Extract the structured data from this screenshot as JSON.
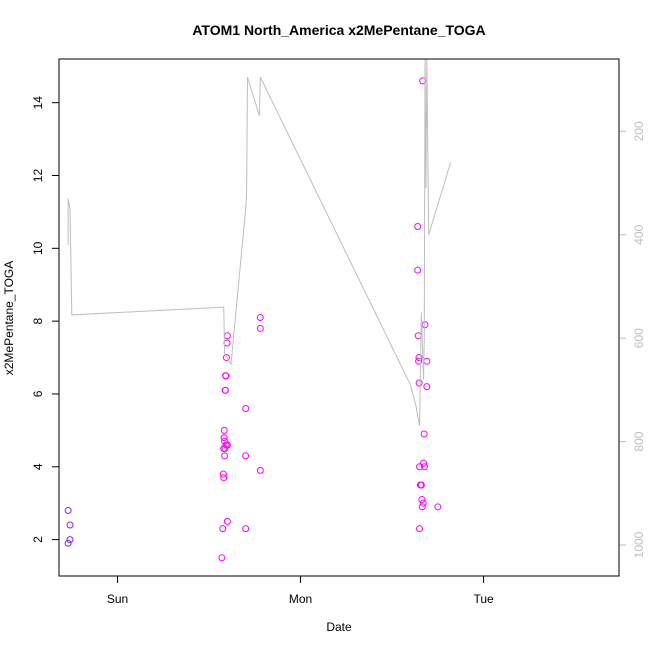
{
  "chart_data": {
    "type": "scatter",
    "title": "ATOM1 North_America x2MePentane_TOGA",
    "xlabel": "Date",
    "ylabel": "x2MePentane_TOGA",
    "x_ticks": [
      "Sun",
      "Mon",
      "Tue"
    ],
    "y_ticks": [
      "2",
      "4",
      "6",
      "8",
      "10",
      "12",
      "14"
    ],
    "y_right_ticks": [
      "200",
      "400",
      "600",
      "800",
      "1000"
    ],
    "xlim_days": [
      -0.32,
      2.74
    ],
    "ylim": [
      1.0,
      15.2
    ],
    "y_right_lim": [
      1060,
      60
    ],
    "colors": {
      "early_points": "#7f2aff",
      "points": "#ff00ff",
      "pressure_line": "#bebebe",
      "axis": "#000000",
      "right_axis": "#bebebe"
    },
    "series": [
      {
        "kind": "points",
        "x_days": [
          -0.27,
          -0.27,
          -0.26,
          -0.26
        ],
        "y": [
          2.8,
          1.9,
          2.0,
          2.4
        ],
        "colors": [
          "#7f2aff",
          "#7f2aff",
          "#7f2aff",
          "#7f2aff"
        ]
      },
      {
        "kind": "points",
        "x_days": [
          0.57,
          0.575,
          0.578,
          0.58,
          0.58,
          0.582,
          0.583,
          0.585,
          0.585,
          0.587,
          0.588,
          0.59,
          0.59,
          0.592,
          0.593,
          0.595,
          0.598,
          0.6,
          0.6,
          0.6,
          0.6,
          0.7,
          0.7,
          0.7,
          0.78,
          0.78,
          0.78,
          1.64,
          1.64,
          1.643,
          1.645,
          1.647,
          1.648,
          1.65,
          1.65,
          1.655,
          1.66,
          1.663,
          1.665,
          1.667,
          1.67,
          1.672,
          1.675,
          1.677,
          1.68,
          1.69,
          1.69,
          1.75
        ],
        "y": [
          1.5,
          2.3,
          3.8,
          4.5,
          3.7,
          4.8,
          5.0,
          4.3,
          4.7,
          4.5,
          6.1,
          6.5,
          6.1,
          6.5,
          4.6,
          7.0,
          7.4,
          7.6,
          2.5,
          4.6,
          4.6,
          5.6,
          4.3,
          2.3,
          8.1,
          7.8,
          3.9,
          10.6,
          9.4,
          7.6,
          6.9,
          7.0,
          6.3,
          2.3,
          4.0,
          3.5,
          3.5,
          3.1,
          2.9,
          14.6,
          3.0,
          4.1,
          4.9,
          4.0,
          7.9,
          6.9,
          6.2,
          2.9
        ],
        "colors": [
          "#ff00ff",
          "#ff00ff",
          "#ff00ff",
          "#ff00ff",
          "#ff00ff",
          "#ff00ff",
          "#ff00ff",
          "#ff00ff",
          "#ff00ff",
          "#ff00ff",
          "#ff00ff",
          "#ff00ff",
          "#ff00ff",
          "#ff00ff",
          "#ff00ff",
          "#ff00ff",
          "#ff00ff",
          "#ff00ff",
          "#ff00ff",
          "#ff00ff",
          "#ff00ff",
          "#ff00ff",
          "#ff00ff",
          "#ff00ff",
          "#ff00ff",
          "#ff00ff",
          "#ff00ff",
          "#ff00ff",
          "#ff00ff",
          "#ff00ff",
          "#ff00ff",
          "#ff00ff",
          "#ff00ff",
          "#ff00ff",
          "#ff00ff",
          "#ff00ff",
          "#ff00ff",
          "#ff00ff",
          "#ff00ff",
          "#ff00ff",
          "#ff00ff",
          "#ff00ff",
          "#ff00ff",
          "#ff00ff",
          "#ff00ff",
          "#ff00ff",
          "#ff00ff",
          "#ff00ff"
        ]
      },
      {
        "kind": "line",
        "axis": "right",
        "x_days": [
          -0.27,
          -0.27,
          -0.26,
          -0.25,
          0.58,
          0.585,
          0.62,
          0.7,
          0.705,
          0.71,
          0.775,
          0.78,
          1.6,
          1.63,
          1.65,
          1.66,
          1.672,
          1.676,
          1.68,
          1.685,
          1.69,
          1.7,
          1.82
        ],
        "y_hpa": [
          420,
          330,
          350,
          555,
          540,
          630,
          650,
          350,
          320,
          95,
          170,
          95,
          690,
          730,
          770,
          550,
          680,
          600,
          60,
          310,
          60,
          400,
          260
        ]
      }
    ]
  }
}
